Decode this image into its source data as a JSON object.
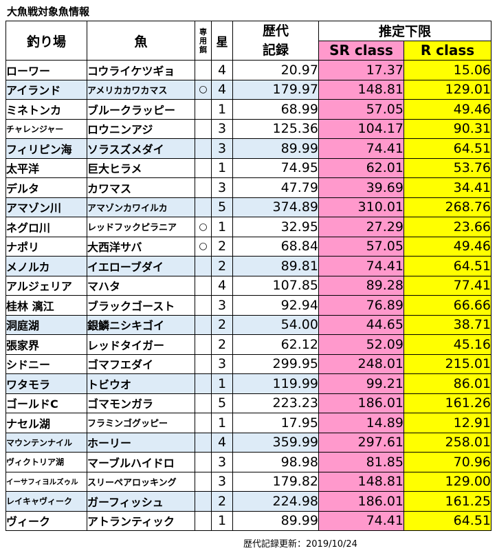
{
  "title": "大魚戦対象魚情報",
  "headers": {
    "spot": "釣り場",
    "fish": "魚",
    "bait": "専用餌",
    "star": "星",
    "record_line1": "歴代",
    "record_line2": "記録",
    "estimate": "推定下限",
    "sr": "SR class",
    "r": "R class"
  },
  "colors": {
    "sr": "#ff99cc",
    "r": "#ffff00",
    "shaded": "#ddebf7"
  },
  "rows": [
    {
      "spot": "ローワー",
      "fish": "コウライケツギョ",
      "bait": "",
      "star": "4",
      "record": "20.97",
      "sr": "17.37",
      "r": "15.06",
      "shaded": false
    },
    {
      "spot": "アイランド",
      "fish": "アメリカカワカマス",
      "bait": "○",
      "star": "4",
      "record": "179.97",
      "sr": "148.81",
      "r": "129.01",
      "shaded": true
    },
    {
      "spot": "ミネトンカ",
      "fish": "ブルークラッピー",
      "bait": "",
      "star": "1",
      "record": "68.99",
      "sr": "57.05",
      "r": "49.46",
      "shaded": false
    },
    {
      "spot": "チャレンジャー",
      "fish": "ロウニンアジ",
      "bait": "",
      "star": "3",
      "record": "125.36",
      "sr": "104.17",
      "r": "90.31",
      "shaded": false
    },
    {
      "spot": "フィリピン海",
      "fish": "ソラスズメダイ",
      "bait": "",
      "star": "3",
      "record": "89.99",
      "sr": "74.41",
      "r": "64.51",
      "shaded": true
    },
    {
      "spot": "太平洋",
      "fish": "巨大ヒラメ",
      "bait": "",
      "star": "1",
      "record": "74.95",
      "sr": "62.01",
      "r": "53.76",
      "shaded": false
    },
    {
      "spot": "デルタ",
      "fish": "カワマス",
      "bait": "",
      "star": "3",
      "record": "47.79",
      "sr": "39.69",
      "r": "34.41",
      "shaded": false
    },
    {
      "spot": "アマゾン川",
      "fish": "アマゾンカワイルカ",
      "bait": "",
      "star": "5",
      "record": "374.89",
      "sr": "310.01",
      "r": "268.76",
      "shaded": true
    },
    {
      "spot": "ネグロ川",
      "fish": "レッドフックピラニア",
      "bait": "○",
      "star": "1",
      "record": "32.95",
      "sr": "27.29",
      "r": "23.66",
      "shaded": false
    },
    {
      "spot": "ナポリ",
      "fish": "大西洋サバ",
      "bait": "○",
      "star": "2",
      "record": "68.84",
      "sr": "57.05",
      "r": "49.46",
      "shaded": false
    },
    {
      "spot": "メノルカ",
      "fish": "イエローブダイ",
      "bait": "",
      "star": "2",
      "record": "89.81",
      "sr": "74.41",
      "r": "64.51",
      "shaded": true
    },
    {
      "spot": "アルジェリア",
      "fish": "マハタ",
      "bait": "",
      "star": "4",
      "record": "107.85",
      "sr": "89.28",
      "r": "77.41",
      "shaded": false
    },
    {
      "spot": "桂林 漓江",
      "fish": "ブラックゴースト",
      "bait": "",
      "star": "3",
      "record": "92.94",
      "sr": "76.89",
      "r": "66.66",
      "shaded": false
    },
    {
      "spot": "洞庭湖",
      "fish": "銀鱗ニシキゴイ",
      "bait": "",
      "star": "2",
      "record": "54.00",
      "sr": "44.65",
      "r": "38.71",
      "shaded": true
    },
    {
      "spot": "張家界",
      "fish": "レッドタイガー",
      "bait": "",
      "star": "2",
      "record": "62.12",
      "sr": "52.09",
      "r": "45.16",
      "shaded": false
    },
    {
      "spot": "シドニー",
      "fish": "ゴマフエダイ",
      "bait": "",
      "star": "3",
      "record": "299.95",
      "sr": "248.01",
      "r": "215.01",
      "shaded": false
    },
    {
      "spot": "ワタモラ",
      "fish": "トビウオ",
      "bait": "",
      "star": "1",
      "record": "119.99",
      "sr": "99.21",
      "r": "86.01",
      "shaded": true
    },
    {
      "spot": "ゴールドC",
      "fish": "ゴマモンガラ",
      "bait": "",
      "star": "5",
      "record": "223.23",
      "sr": "186.01",
      "r": "161.26",
      "shaded": false
    },
    {
      "spot": "ナセル湖",
      "fish": "フラミンゴグッピー",
      "bait": "",
      "star": "1",
      "record": "17.95",
      "sr": "14.89",
      "r": "12.91",
      "shaded": false
    },
    {
      "spot": "マウンテンナイル",
      "fish": "ホーリー",
      "bait": "",
      "star": "4",
      "record": "359.99",
      "sr": "297.61",
      "r": "258.01",
      "shaded": true
    },
    {
      "spot": "ヴィクトリア湖",
      "fish": "マーブルハイドロ",
      "bait": "",
      "star": "3",
      "record": "98.98",
      "sr": "81.85",
      "r": "70.96",
      "shaded": false
    },
    {
      "spot": "イーサフィヨルズゥル",
      "fish": "スリーペアロッキング",
      "bait": "",
      "star": "3",
      "record": "179.82",
      "sr": "148.81",
      "r": "129.00",
      "shaded": false
    },
    {
      "spot": "レイキャヴィーク",
      "fish": "ガーフィッシュ",
      "bait": "",
      "star": "2",
      "record": "224.98",
      "sr": "186.01",
      "r": "161.25",
      "shaded": true
    },
    {
      "spot": "ヴィーク",
      "fish": "アトランティック",
      "bait": "",
      "star": "1",
      "record": "89.99",
      "sr": "74.41",
      "r": "64.51",
      "shaded": false
    }
  ],
  "footer": "歴代記録更新：2019/10/24"
}
